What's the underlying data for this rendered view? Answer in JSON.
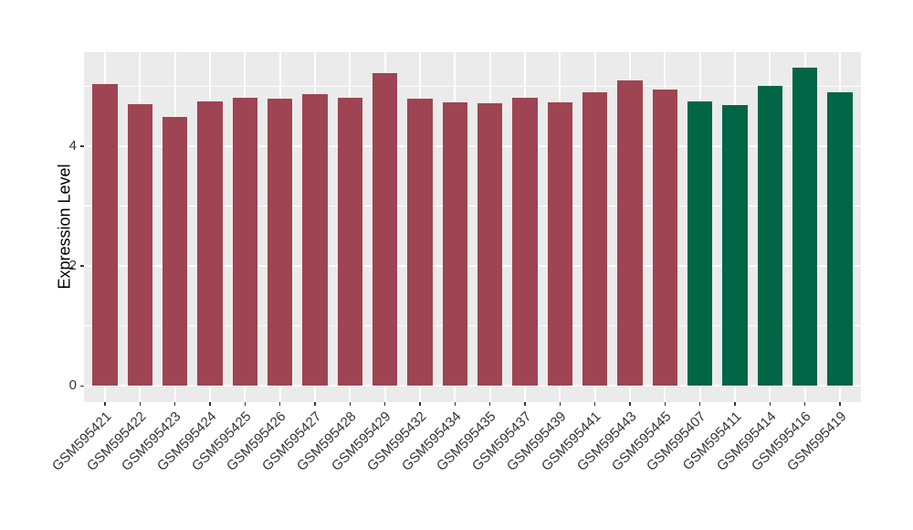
{
  "chart_data": {
    "type": "bar",
    "title": "",
    "xlabel": "",
    "ylabel": "Expression Level",
    "categories": [
      "GSM595421",
      "GSM595422",
      "GSM595423",
      "GSM595424",
      "GSM595425",
      "GSM595426",
      "GSM595427",
      "GSM595428",
      "GSM595429",
      "GSM595432",
      "GSM595434",
      "GSM595435",
      "GSM595437",
      "GSM595439",
      "GSM595441",
      "GSM595443",
      "GSM595445",
      "GSM595407",
      "GSM595411",
      "GSM595414",
      "GSM595416",
      "GSM595419"
    ],
    "values": [
      5.03,
      4.7,
      4.48,
      4.74,
      4.8,
      4.79,
      4.87,
      4.8,
      5.22,
      4.79,
      4.73,
      4.72,
      4.81,
      4.73,
      4.9,
      5.1,
      4.95,
      4.74,
      4.69,
      5.01,
      5.31,
      4.9
    ],
    "bar_colors": [
      "#9E4452",
      "#9E4452",
      "#9E4452",
      "#9E4452",
      "#9E4452",
      "#9E4452",
      "#9E4452",
      "#9E4452",
      "#9E4452",
      "#9E4452",
      "#9E4452",
      "#9E4452",
      "#9E4452",
      "#9E4452",
      "#9E4452",
      "#9E4452",
      "#9E4452",
      "#006646",
      "#006646",
      "#006646",
      "#006646",
      "#006646"
    ],
    "ylim": [
      -0.27,
      5.57
    ],
    "yticks": [
      0,
      2,
      4
    ],
    "ytick_labels": [
      "0",
      "2",
      "4"
    ],
    "minor_gridlines": [
      1,
      3,
      5
    ],
    "grid": "on",
    "legend": "none",
    "panel_bg": "#EBEBEB",
    "grid_color": "#FFFFFF",
    "axis_text_color": "#333333",
    "xlabel_rotation_deg": 45
  }
}
